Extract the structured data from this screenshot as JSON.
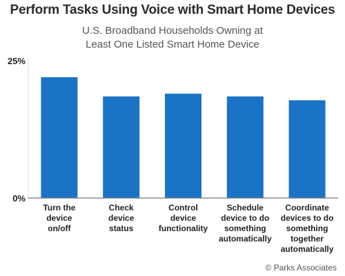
{
  "title": "Perform Tasks Using Voice with Smart Home Devices",
  "subtitle_lines": [
    "U.S. Broadband Households Owning at",
    "Least One Listed Smart Home Device"
  ],
  "credit": "© Parks Associates",
  "colors": {
    "bar": "#1a73c4",
    "axis": "#9a9a9a",
    "text": "#222222"
  },
  "chart_data": {
    "type": "bar",
    "categories": [
      [
        "Turn the",
        "device",
        "on/off"
      ],
      [
        "Check",
        "device",
        "status"
      ],
      [
        "Control",
        "device",
        "functionality"
      ],
      [
        "Schedule",
        "device to do",
        "something",
        "automatically"
      ],
      [
        "Coordinate",
        "devices to do",
        "something",
        "together",
        "automatically"
      ]
    ],
    "values": [
      22,
      18.5,
      19,
      18.5,
      17.8
    ],
    "ylim": [
      0,
      25
    ],
    "yticks": [
      0,
      25
    ],
    "ytick_labels": [
      "0%",
      "25%"
    ],
    "grid": false,
    "legend": "none"
  }
}
